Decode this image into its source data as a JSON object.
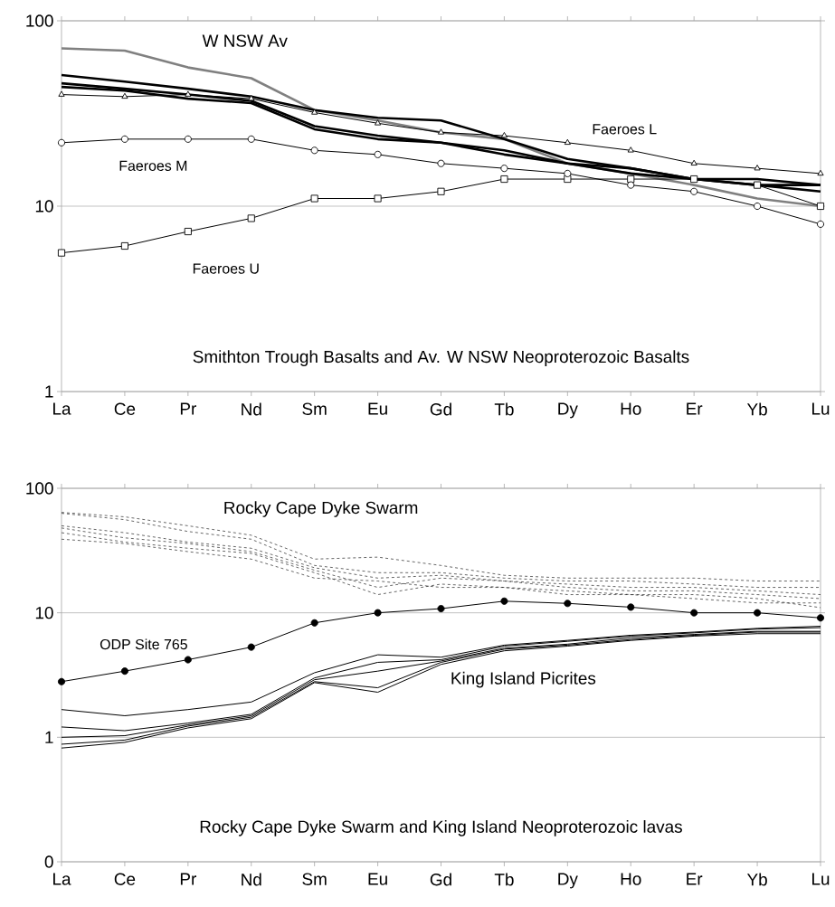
{
  "chart_data": [
    {
      "type": "line",
      "title": "Smithton Trough Basalts and Av. W NSW Neoproterozoic Basalts",
      "categories": [
        "La",
        "Ce",
        "Pr",
        "Nd",
        "Sm",
        "Eu",
        "Gd",
        "Tb",
        "Dy",
        "Ho",
        "Er",
        "Yb",
        "Lu"
      ],
      "log": true,
      "ylim": [
        1,
        100
      ],
      "yticks": [
        1,
        10,
        100
      ],
      "grid": "y",
      "marker": "none",
      "line_style": "solid",
      "series": [
        {
          "name": "W NSW Av",
          "color": "#808080",
          "values": [
            71,
            69,
            56,
            49,
            33,
            29,
            25,
            23,
            17,
            15,
            13,
            11,
            10
          ]
        },
        {
          "color": "#000000",
          "values": [
            51,
            47,
            43,
            39,
            33,
            30,
            29,
            23,
            18,
            16,
            14,
            13,
            12
          ]
        },
        {
          "color": "#000000",
          "values": [
            46,
            43,
            40,
            37,
            27,
            24,
            22,
            20,
            17,
            16,
            14,
            14,
            13
          ]
        },
        {
          "color": "#000000",
          "values": [
            44,
            42,
            38,
            36,
            26,
            23,
            22,
            19,
            17,
            15,
            14,
            13,
            13
          ]
        },
        {
          "name": "Faeroes L",
          "color": "#000000",
          "marker": "triangle",
          "values": [
            40,
            39,
            40,
            38,
            32,
            28,
            25,
            24,
            22,
            20,
            17,
            16,
            15
          ]
        },
        {
          "name": "Faeroes U",
          "color": "#000000",
          "marker": "square",
          "values": [
            5.6,
            6.1,
            7.3,
            8.6,
            11,
            11,
            12,
            14,
            14,
            14,
            14,
            13,
            10
          ]
        },
        {
          "name": "Faeroes M",
          "color": "#000000",
          "marker": "circle",
          "values": [
            22,
            23,
            23,
            23,
            20,
            19,
            17,
            16,
            15,
            13,
            12,
            10,
            8
          ]
        }
      ]
    },
    {
      "type": "line",
      "title": "Rocky Cape Dyke Swarm and King Island Neoproterozoic lavas",
      "categories": [
        "La",
        "Ce",
        "Pr",
        "Nd",
        "Sm",
        "Eu",
        "Gd",
        "Tb",
        "Dy",
        "Ho",
        "Er",
        "Yb",
        "Lu"
      ],
      "log": true,
      "ylim": [
        0.1,
        100
      ],
      "yticks": [
        {
          "value": 0.1,
          "label": "0"
        },
        1,
        10,
        100
      ],
      "grid": "y",
      "marker": "none",
      "line_style": "solid",
      "series": [
        {
          "name": "Rocky Cape Dyke Swarm",
          "color": "#000000",
          "line_style": "dashed",
          "values": [
            64,
            59,
            50,
            42,
            27,
            28,
            24,
            20,
            19,
            19,
            19,
            18,
            18
          ]
        },
        {
          "color": "#000000",
          "line_style": "dashed",
          "values": [
            63,
            56,
            45,
            39,
            24,
            21,
            21,
            19,
            18,
            18,
            17,
            16,
            16
          ]
        },
        {
          "color": "#000000",
          "line_style": "dashed",
          "values": [
            50,
            44,
            37,
            33,
            23,
            19,
            20,
            18,
            17,
            16,
            16,
            15,
            14
          ]
        },
        {
          "color": "#000000",
          "line_style": "dashed",
          "values": [
            48,
            40,
            36,
            31,
            22,
            16,
            19,
            18,
            16,
            15,
            15,
            14,
            13
          ]
        },
        {
          "color": "#000000",
          "line_style": "dashed",
          "values": [
            44,
            37,
            33,
            30,
            21,
            14,
            17,
            16,
            15,
            14,
            14,
            13,
            11
          ]
        },
        {
          "color": "#000000",
          "line_style": "dashed",
          "values": [
            39,
            36,
            31,
            27,
            19,
            18,
            16,
            16,
            14,
            14,
            13,
            12,
            12
          ]
        },
        {
          "name": "ODP Site 765",
          "color": "#000000",
          "marker": "circle",
          "values": [
            2.8,
            3.4,
            4.2,
            5.3,
            8.3,
            10,
            10.8,
            12.4,
            11.9,
            11.1,
            10,
            10,
            9.1
          ]
        },
        {
          "name": "King Island Picrites",
          "color": "#000000",
          "values": [
            1.67,
            1.49,
            1.67,
            1.92,
            3.3,
            4.6,
            4.4,
            5.5,
            6.0,
            6.6,
            7.0,
            7.5,
            7.8
          ]
        },
        {
          "color": "#000000",
          "values": [
            1.21,
            1.13,
            1.3,
            1.53,
            3.0,
            4.0,
            4.2,
            5.4,
            5.9,
            6.5,
            6.9,
            7.4,
            7.6
          ]
        },
        {
          "color": "#000000",
          "values": [
            1.0,
            1.03,
            1.26,
            1.49,
            2.9,
            3.4,
            4.1,
            5.2,
            5.6,
            6.3,
            6.7,
            7.1,
            7.1
          ]
        },
        {
          "color": "#000000",
          "values": [
            0.88,
            0.95,
            1.23,
            1.45,
            2.8,
            2.5,
            4.0,
            5.1,
            5.5,
            6.1,
            6.6,
            7.0,
            7.0
          ]
        },
        {
          "color": "#000000",
          "values": [
            0.82,
            0.91,
            1.19,
            1.41,
            2.75,
            2.3,
            3.85,
            4.95,
            5.4,
            6.0,
            6.5,
            6.8,
            6.8
          ]
        }
      ]
    }
  ]
}
